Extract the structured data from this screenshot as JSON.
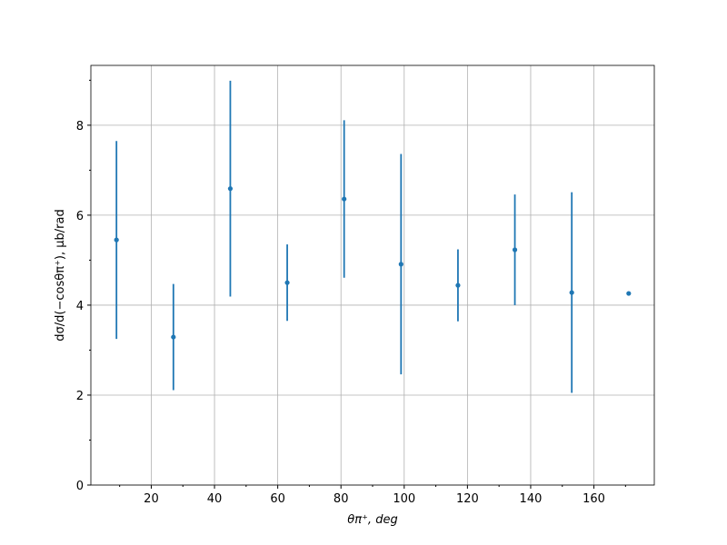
{
  "chart_data": {
    "type": "errorbar",
    "x_label": "θπ⁺, deg",
    "y_label": "dσ/d(−cosθπ⁺), μb/rad",
    "x": [
      9,
      27,
      45,
      63,
      81,
      99,
      117,
      135,
      153,
      171
    ],
    "series": [
      {
        "color": "#1f77b4",
        "values": [
          5.45,
          3.29,
          6.59,
          4.5,
          6.36,
          4.91,
          4.44,
          5.23,
          4.28,
          4.26
        ],
        "yerr": [
          2.2,
          1.18,
          2.4,
          0.85,
          1.75,
          2.45,
          0.8,
          1.23,
          2.23,
          0
        ]
      }
    ],
    "xlim": [
      0.9,
      179.1
    ],
    "ylim": [
      0,
      9.33
    ],
    "xticks": [
      20,
      40,
      60,
      80,
      100,
      120,
      140,
      160
    ],
    "yticks": [
      0,
      2,
      4,
      6,
      8
    ],
    "xminorticks": [
      10,
      30,
      50,
      70,
      90,
      110,
      130,
      150,
      170
    ],
    "yminorticks": [
      1,
      3,
      5,
      7,
      9
    ],
    "grid": true
  }
}
